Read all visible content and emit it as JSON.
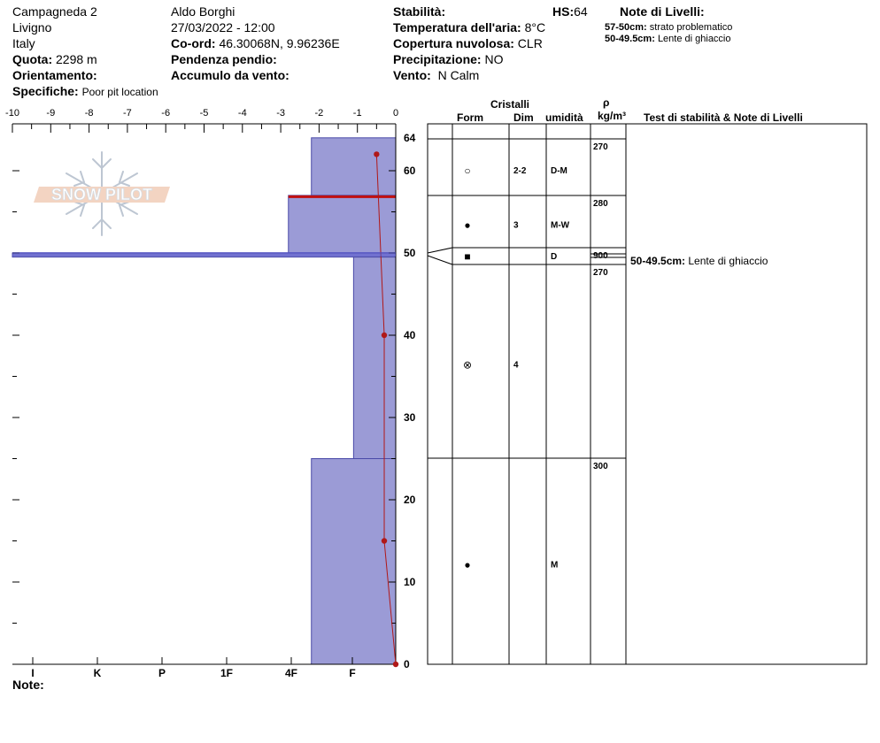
{
  "header": {
    "site": "Campagneda 2",
    "area": "Livigno",
    "country": "Italy",
    "quota_label": "Quota:",
    "quota_value": "2298 m",
    "orientamento_label": "Orientamento:",
    "specifiche_label": "Specifiche:",
    "specifiche_value": "Poor pit location",
    "observer": "Aldo Borghi",
    "datetime": "27/03/2022 - 12:00",
    "coord_label": "Co-ord:",
    "coord_value": "46.30068N, 9.96236E",
    "pendenza_label": "Pendenza pendio:",
    "accumulo_label": "Accumulo da vento:",
    "stabilita_label": "Stabilità:",
    "hs_label": "HS:",
    "hs_value": "64",
    "temp_label": "Temperatura dell'aria:",
    "temp_value": "8°C",
    "copertura_label": "Copertura nuvolosa:",
    "copertura_value": "CLR",
    "precip_label": "Precipitazione:",
    "precip_value": "NO",
    "vento_label": "Vento:",
    "vento_value": "N Calm",
    "note_livelli_title": "Note di Livelli:",
    "note_livelli": [
      {
        "range": "57-50cm:",
        "text": "strato problematico"
      },
      {
        "range": "50-49.5cm:",
        "text": "Lente di ghiaccio"
      }
    ],
    "logo_text": "SNOW PILOT"
  },
  "table": {
    "cristalli": "Cristalli",
    "form": "Form",
    "dim": "Dim",
    "umidita": "umidità",
    "rho": "ρ",
    "rho_unit": "kg/m³",
    "test_header": "Test di stabilità & Note di Livelli",
    "layers": [
      {
        "top": 64,
        "bottom": 57,
        "form": "○",
        "dim": "2-2",
        "wet": "D-M",
        "density": "270"
      },
      {
        "top": 57,
        "bottom": 50,
        "form": "●",
        "dim": "3",
        "wet": "M-W",
        "density": "280"
      },
      {
        "top": 50,
        "bottom": 49.5,
        "form": "■",
        "dim": "",
        "wet": "D",
        "density": "900"
      },
      {
        "top": 49.5,
        "bottom": 25,
        "form": "⊗",
        "dim": "4",
        "wet": "",
        "density": "270"
      },
      {
        "top": 25,
        "bottom": 0,
        "form": "●",
        "dim": "",
        "wet": "M",
        "density": "300"
      }
    ],
    "layer_notes": [
      {
        "range": "50-49.5cm:",
        "text": "Lente di ghiaccio"
      }
    ]
  },
  "footer": {
    "note_label": "Note:"
  },
  "chart_data": {
    "type": "snow_profile",
    "hs": 64,
    "y_ticks": [
      0,
      10,
      20,
      30,
      40,
      50,
      60,
      64
    ],
    "temp_axis": {
      "min": -10,
      "max": 0,
      "ticks": [
        -10,
        -9,
        -8,
        -7,
        -6,
        -5,
        -4,
        -3,
        -2,
        -1,
        0
      ]
    },
    "hardness_scale": [
      "I",
      "K",
      "P",
      "1F",
      "4F",
      "F"
    ],
    "hardness_layers": [
      {
        "top": 64,
        "bottom": 57,
        "hardness_index": 2.2
      },
      {
        "top": 57,
        "bottom": 50,
        "hardness_index": 2.8
      },
      {
        "top": 50,
        "bottom": 49.5,
        "hardness_index": 10
      },
      {
        "top": 49.5,
        "bottom": 25,
        "hardness_index": 1.1
      },
      {
        "top": 25,
        "bottom": 0,
        "hardness_index": 2.2
      }
    ],
    "temperature_profile": [
      {
        "depth": 62,
        "temp": -0.5
      },
      {
        "depth": 40,
        "temp": -0.3
      },
      {
        "depth": 15,
        "temp": -0.3
      },
      {
        "depth": 0,
        "temp": 0
      }
    ],
    "problem_layer": {
      "top": 57,
      "bottom": 56.7
    },
    "colors": {
      "bar": "#9b9bd6",
      "bar_edge": "#4a4aa8",
      "temp": "#b01818",
      "problem": "#c01010",
      "ice": "#5555cc"
    }
  }
}
